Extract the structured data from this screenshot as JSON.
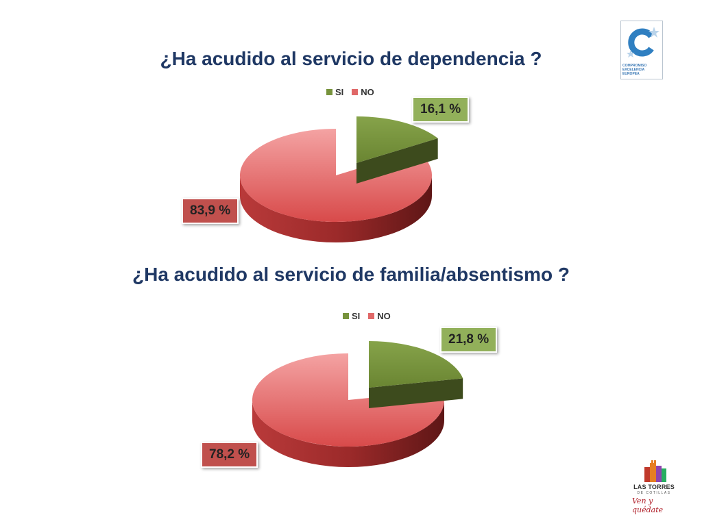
{
  "colors": {
    "title": "#1f3864",
    "si": "#77933c",
    "si_side": "#3d4b1d",
    "no": "#e06868",
    "no_side": "#8b2222",
    "label_si_bg": "#92b05a",
    "label_no_bg": "#c0504d"
  },
  "chart_data": [
    {
      "type": "pie",
      "title": "¿Ha acudido al servicio de dependencia ?",
      "legend": [
        "SI",
        "NO"
      ],
      "legend_position": "top",
      "categories": [
        "SI",
        "NO"
      ],
      "values": [
        16.1,
        83.9
      ],
      "value_labels": [
        "16,1 %",
        "83,9 %"
      ]
    },
    {
      "type": "pie",
      "title": "¿Ha acudido al servicio de familia/absentismo ?",
      "legend": [
        "SI",
        "NO"
      ],
      "legend_position": "top",
      "categories": [
        "SI",
        "NO"
      ],
      "values": [
        21.8,
        78.2
      ],
      "value_labels": [
        "21,8 %",
        "78,2 %"
      ]
    }
  ],
  "logos": {
    "top_right": {
      "icon": "compromiso-excelencia-europea-logo",
      "caption": [
        "COMPROMISO",
        "EXCELENCIA",
        "EUROPEA"
      ]
    },
    "bottom_right": {
      "icon": "las-torres-de-cotillas-logo",
      "name": "LAS TORRES",
      "sub": "DE COTILLAS",
      "slogan": "Ven y quédate"
    }
  }
}
